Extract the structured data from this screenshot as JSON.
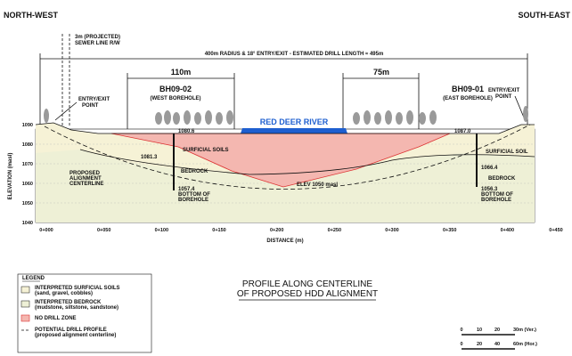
{
  "header": {
    "left": "NORTH-WEST",
    "right": "SOUTH-EAST"
  },
  "annotations": {
    "sewer": [
      "3m (PROJECTED)",
      "SEWER LINE R/W"
    ],
    "drill": "400m RADIUS & 18° ENTRY/EXIT - ESTIMATED DRILL LENGTH ≈ 495m",
    "dim_left": "110m",
    "dim_right": "75m",
    "entry_left": [
      "ENTRY/EXIT",
      "POINT"
    ],
    "entry_right": [
      "ENTRY/EXIT",
      "POINT"
    ],
    "river": "RED DEER RIVER",
    "alignment": [
      "PROPOSED",
      "ALIGNMENT",
      "CENTERLINE"
    ],
    "elev": "ELEV 1050 masl"
  },
  "boreholes": [
    {
      "name": "BH09-02",
      "desc": "(WEST BOREHOLE)",
      "top": "1080.6",
      "mid": "1081.3",
      "bottom": [
        "1057.4",
        "BOTTOM OF",
        "BOREHOLE"
      ]
    },
    {
      "name": "BH09-01",
      "desc": "(EAST BOREHOLE)",
      "top": "1087.0",
      "mid": "1066.4",
      "bottom": [
        "1056.3",
        "BOTTOM OF",
        "BOREHOLE"
      ]
    }
  ],
  "layers": [
    "SURFICIAL SOILS",
    "BEDROCK",
    "SURFICIAL SOIL",
    "BEDROCK"
  ],
  "axes": {
    "y_label": "ELEVATION (masl)",
    "y_ticks": [
      "1090",
      "1080",
      "1070",
      "1060",
      "1050",
      "1040"
    ],
    "x_ticks": [
      "0+000",
      "0+050",
      "0+100",
      "0+150",
      "0+200",
      "0+250",
      "0+300",
      "0+350",
      "0+400",
      "0+450"
    ],
    "x_label": "DISTANCE (m)"
  },
  "title": [
    "PROFILE ALONG CENTERLINE",
    "OF PROPOSED HDD ALIGNMENT"
  ],
  "legend": {
    "title": "LEGEND",
    "items": [
      {
        "label": "INTERPRETED SURFICIAL SOILS",
        "sub": "(sand, gravel, cobbles)"
      },
      {
        "label": "INTERPRETED BEDROCK",
        "sub": "(mudstone, siltstone, sandstone)"
      },
      {
        "label": "NO DRILL ZONE"
      },
      {
        "label": "POTENTIAL DRILL PROFILE",
        "sub": "(proposed alignment centerline)"
      }
    ]
  },
  "scale": {
    "vertical": [
      "0",
      "10",
      "20",
      "30m (Ver.)"
    ],
    "horizontal": [
      "0",
      "20",
      "40",
      "60m (Hor.)"
    ]
  }
}
